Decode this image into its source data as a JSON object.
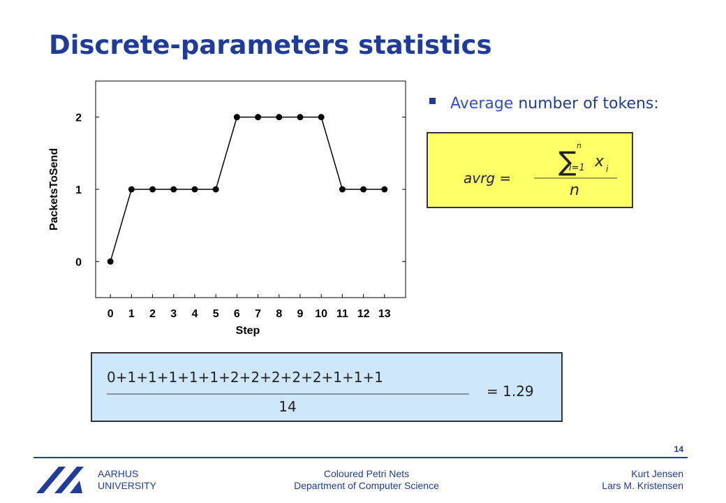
{
  "slide": {
    "title": "Discrete-parameters statistics",
    "bullet": {
      "highlight": "Average",
      "rest": "number of tokens:"
    },
    "formula": {
      "lhs": "avrg =",
      "sigma": "∑",
      "upper": "n",
      "lower": "i=1",
      "var": "x",
      "sub": "i",
      "denominator": "n"
    },
    "calculation": {
      "numerator": "0+1+1+1+1+1+2+2+2+2+2+1+1+1",
      "denominator": "14",
      "result": "= 1.29"
    },
    "footer": {
      "page": "14",
      "logo_line1": "AARHUS",
      "logo_line2": "UNIVERSITY",
      "center_line1": "Coloured Petri Nets",
      "center_line2": "Department of Computer Science",
      "right_line1": "Kurt Jensen",
      "right_line2": "Lars M. Kristensen"
    }
  },
  "chart_data": {
    "type": "line",
    "xlabel": "Step",
    "ylabel": "PacketsToSend",
    "x": [
      0,
      1,
      2,
      3,
      4,
      5,
      6,
      7,
      8,
      9,
      10,
      11,
      12,
      13
    ],
    "values": [
      0,
      1,
      1,
      1,
      1,
      1,
      2,
      2,
      2,
      2,
      2,
      1,
      1,
      1
    ],
    "color": "#000000",
    "xlim": [
      -0.7,
      14
    ],
    "xticks": [
      0,
      1,
      2,
      3,
      4,
      5,
      6,
      7,
      8,
      9,
      10,
      11,
      12,
      13
    ],
    "ylim": [
      -0.5,
      2.5
    ],
    "yticks": [
      0,
      1,
      2
    ],
    "grid": false
  }
}
